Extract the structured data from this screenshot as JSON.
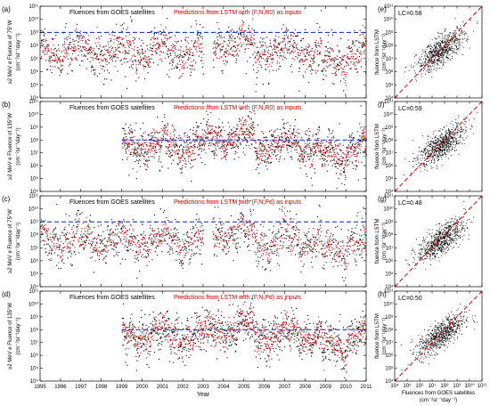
{
  "chart_data": [
    {
      "type": "scatter",
      "panel_label": "(a)",
      "legend": [
        "Fluences from GOES satellites",
        "Predictions from LSTM with (F,N,R0) as inputs"
      ],
      "ylabel": [
        "≥2 MeV e Fluence of 75°W",
        "(cm⁻²sr⁻¹day⁻¹)"
      ],
      "xlim": [
        1995,
        2011
      ],
      "ylim": [
        4,
        11
      ],
      "ylog": true,
      "ytick_labels": [
        "10⁴",
        "10⁵",
        "10⁶",
        "10⁷",
        "10⁸",
        "10⁹",
        "10¹⁰",
        "10¹¹"
      ],
      "data_start": 1995.0,
      "data_end": 2011.0,
      "gap": [
        2003.0,
        2003.45
      ],
      "threshold": 9,
      "series": [
        {
          "label": "observed",
          "color": "#000000"
        },
        {
          "label": "predicted",
          "color": "#e00000"
        }
      ]
    },
    {
      "type": "scatter",
      "panel_label": "(b)",
      "legend": [
        "Fluences from GOES satellites",
        "Predictions from LSTM with (F,N,R0) as inputs"
      ],
      "ylabel": [
        "≥2 MeV e Fluence of 135°W",
        "(cm⁻²sr⁻¹day⁻¹)"
      ],
      "xlim": [
        1995,
        2011
      ],
      "ylim": [
        4,
        11
      ],
      "ylog": true,
      "ytick_labels": [
        "10⁴",
        "10⁵",
        "10⁶",
        "10⁷",
        "10⁸",
        "10⁹",
        "10¹⁰",
        "10¹¹"
      ],
      "data_start": 1999.0,
      "data_end": 2011.0,
      "gap": null,
      "threshold": 8,
      "series": [
        {
          "label": "observed",
          "color": "#000000"
        },
        {
          "label": "predicted",
          "color": "#e00000"
        }
      ]
    },
    {
      "type": "scatter",
      "panel_label": "(c)",
      "legend": [
        "Fluences from GOES satellites",
        "Predictions from LSTM with (F,N,Pd) as inputs"
      ],
      "ylabel": [
        "≥2 MeV e Fluence of 75°W",
        "(cm⁻²sr⁻¹day⁻¹)"
      ],
      "xlim": [
        1995,
        2011
      ],
      "ylim": [
        4,
        11
      ],
      "ylog": true,
      "ytick_labels": [
        "10⁴",
        "10⁵",
        "10⁶",
        "10⁷",
        "10⁸",
        "10⁹",
        "10¹⁰",
        "10¹¹"
      ],
      "data_start": 1995.0,
      "data_end": 2011.0,
      "gap": [
        2003.0,
        2003.45
      ],
      "threshold": 9,
      "series": [
        {
          "label": "observed",
          "color": "#000000"
        },
        {
          "label": "predicted",
          "color": "#e00000"
        }
      ]
    },
    {
      "type": "scatter",
      "panel_label": "(d)",
      "legend": [
        "Fluences from GOES satellites",
        "Predictions from LSTM with (F,N,Pd) as inputs"
      ],
      "ylabel": [
        "≥2 MeV e Fluence of 135°W",
        "(cm⁻²sr⁻¹day⁻¹)"
      ],
      "xlim": [
        1995,
        2011
      ],
      "ylim": [
        4,
        11
      ],
      "ylog": true,
      "ytick_labels": [
        "10⁴",
        "10⁵",
        "10⁶",
        "10⁷",
        "10⁸",
        "10⁹",
        "10¹⁰",
        "10¹¹"
      ],
      "xlabel": "Year",
      "xtick_labels": [
        "1995",
        "1996",
        "1997",
        "1998",
        "1999",
        "2000",
        "2001",
        "2002",
        "2003",
        "2004",
        "2005",
        "2006",
        "2007",
        "2008",
        "2009",
        "2010",
        "2011"
      ],
      "data_start": 1999.0,
      "data_end": 2011.0,
      "gap": null,
      "threshold": 8,
      "series": [
        {
          "label": "observed",
          "color": "#000000"
        },
        {
          "label": "predicted",
          "color": "#e00000"
        }
      ]
    },
    {
      "type": "scatter",
      "panel_label": "(e)",
      "annotation": "LC=0.58",
      "ylabel": [
        "fluence from LSTM",
        "(cm⁻²sr⁻¹day⁻¹)"
      ],
      "xlim": [
        4,
        11
      ],
      "ylim": [
        4,
        11
      ],
      "xlog": true,
      "ylog": true,
      "tick_labels": [
        "10⁴",
        "10⁵",
        "10⁶",
        "10⁷",
        "10⁸",
        "10⁹",
        "10¹⁰",
        "10¹¹"
      ],
      "diagonal": "y = x"
    },
    {
      "type": "scatter",
      "panel_label": "(f)",
      "annotation": "LC=0.59",
      "ylabel": [
        "fluence from LSTM",
        "(cm⁻²sr⁻¹day⁻¹)"
      ],
      "xlim": [
        4,
        11
      ],
      "ylim": [
        4,
        11
      ],
      "xlog": true,
      "ylog": true,
      "tick_labels": [
        "10⁴",
        "10⁵",
        "10⁶",
        "10⁷",
        "10⁸",
        "10⁹",
        "10¹⁰",
        "10¹¹"
      ],
      "diagonal": "y = x"
    },
    {
      "type": "scatter",
      "panel_label": "(g)",
      "annotation": "LC=0.48",
      "ylabel": [
        "fluence from LSTM",
        "(cm⁻²sr⁻¹day⁻¹)"
      ],
      "xlim": [
        4,
        11
      ],
      "ylim": [
        4,
        11
      ],
      "xlog": true,
      "ylog": true,
      "tick_labels": [
        "10⁴",
        "10⁵",
        "10⁶",
        "10⁷",
        "10⁸",
        "10⁹",
        "10¹⁰",
        "10¹¹"
      ],
      "diagonal": "y = x"
    },
    {
      "type": "scatter",
      "panel_label": "(h)",
      "annotation": "LC=0.50",
      "ylabel": [
        "fluence from LSTM",
        "(cm⁻²sr⁻¹day⁻¹)"
      ],
      "xlabel": [
        "Fluences from GOES satellites",
        "(cm⁻²sr⁻¹day⁻¹)"
      ],
      "xlim": [
        4,
        11
      ],
      "ylim": [
        4,
        11
      ],
      "xlog": true,
      "ylog": true,
      "tick_labels": [
        "10⁴",
        "10⁵",
        "10⁶",
        "10⁷",
        "10⁸",
        "10⁹",
        "10¹⁰",
        "10¹¹"
      ],
      "diagonal": "y = x"
    }
  ]
}
